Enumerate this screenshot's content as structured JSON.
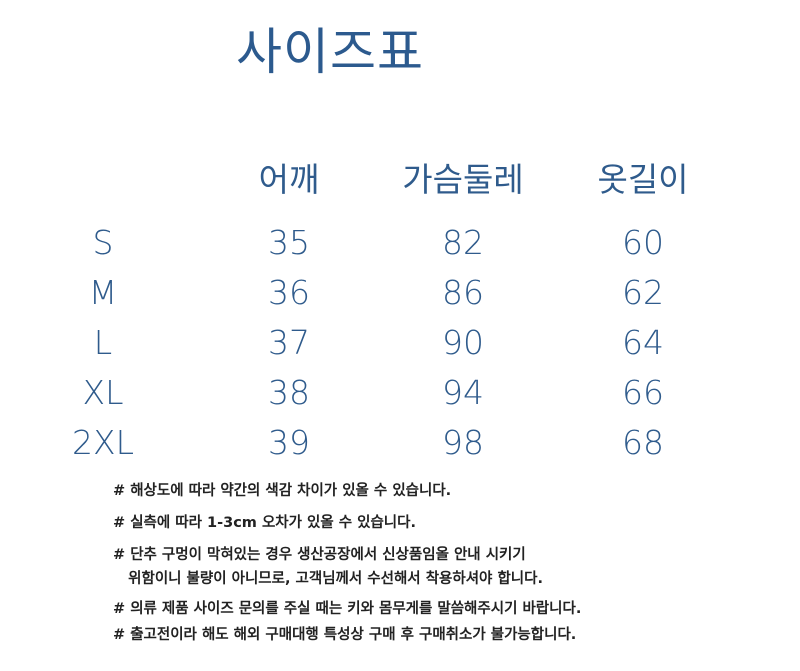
{
  "title": "사이즈표",
  "table": {
    "headers": [
      "",
      "어깨",
      "가슴둘레",
      "옷길이"
    ],
    "rows": [
      [
        "S",
        "35",
        "82",
        "60"
      ],
      [
        "M",
        "36",
        "86",
        "62"
      ],
      [
        "L",
        "37",
        "90",
        "64"
      ],
      [
        "XL",
        "38",
        "94",
        "66"
      ],
      [
        "2XL",
        "39",
        "98",
        "68"
      ]
    ]
  },
  "notes": [
    "# 해상도에 따라 약간의 색감 차이가 있올 수 있습니다.",
    "# 실측에 따라 1-3cm 오차가 있올 수 있습니다.",
    "# 단추 구멍이 막혀있는 경우 생산공장에서 신상품임올 안내 시키기",
    "   위함이니 불량이 아니므로, 고객님께서 수선해서 착용하셔야 합니다.",
    "# 의류 제품 사이즈 문의를 주실 때는 키와 몸무게를 말씀해주시기 바랍니다.",
    "# 출고전이라 해도 해외 구매대행 특성상 구매 후 구매취소가 불가능합니다."
  ],
  "colors": {
    "text_blue": "#2f5b8c",
    "notes": "#222222"
  }
}
